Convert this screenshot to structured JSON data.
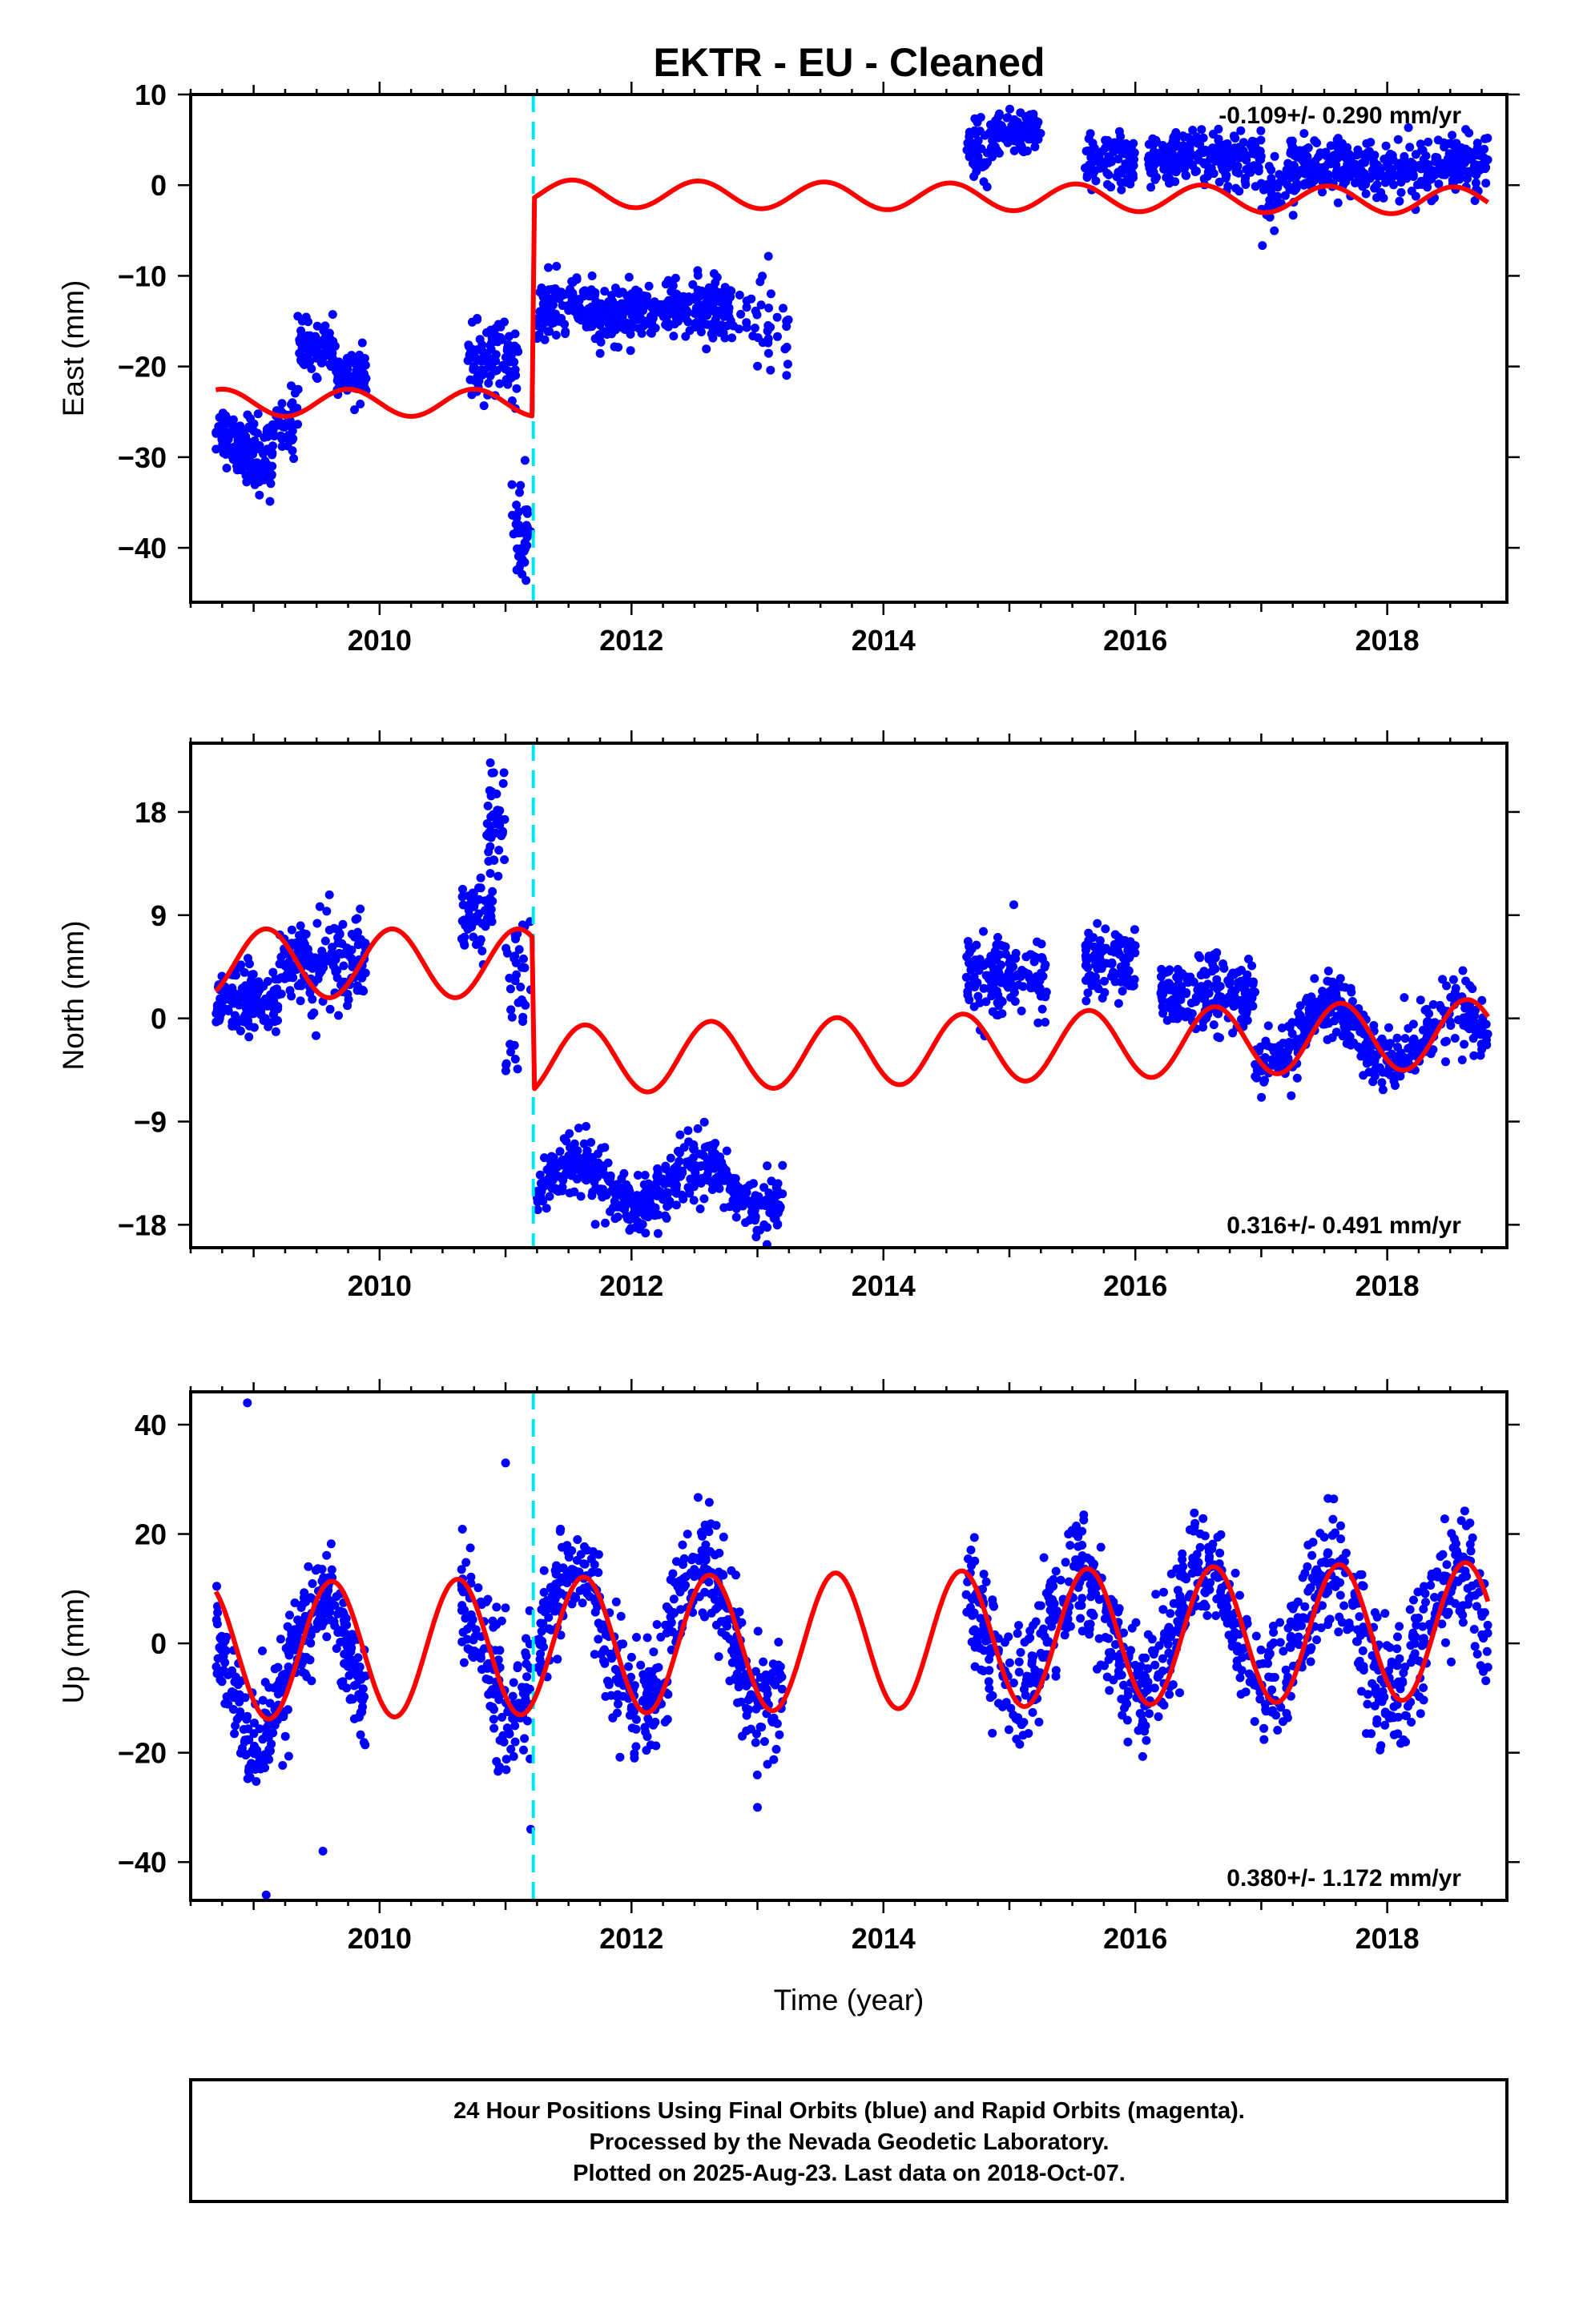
{
  "title": "EKTR  - EU - Cleaned",
  "footer": {
    "lines": [
      "24 Hour Positions Using Final Orbits (blue) and Rapid Orbits (magenta).",
      "Processed by the Nevada Geodetic Laboratory.",
      "Plotted on 2025-Aug-23. Last data on 2018-Oct-07."
    ]
  },
  "colors": {
    "final_orbits": "#0000ff",
    "model": "#ff0000",
    "offset_marker": "#00e5ee",
    "frame": "#000000"
  },
  "chart_data": [
    {
      "type": "scatter",
      "ylabel": "East (mm)",
      "xlabel": "",
      "xlim": [
        2008.5,
        2018.95
      ],
      "ylim": [
        -46,
        10
      ],
      "xticks": [
        2010,
        2012,
        2014,
        2016,
        2018
      ],
      "yticks": [
        -40,
        -30,
        -20,
        -10,
        0,
        10
      ],
      "rate_label": "-0.109+/- 0.290 mm/yr",
      "rate_position": "top-right",
      "offset_epoch": 2011.22,
      "observation_segments": [
        {
          "t0": 2008.7,
          "t1": 2008.95,
          "mean": -28,
          "amp": 2.0,
          "noise": 1.4,
          "n": 90
        },
        {
          "t0": 2008.95,
          "t1": 2009.15,
          "mean": -30,
          "amp": 0,
          "noise": 2.2,
          "n": 60
        },
        {
          "t0": 2009.15,
          "t1": 2009.35,
          "mean": -26,
          "amp": 0,
          "noise": 1.8,
          "n": 45
        },
        {
          "t0": 2009.35,
          "t1": 2009.65,
          "mean": -18,
          "amp": 0,
          "noise": 1.3,
          "n": 90
        },
        {
          "t0": 2009.65,
          "t1": 2009.9,
          "mean": -21,
          "amp": 0,
          "noise": 1.3,
          "n": 70
        },
        {
          "t0": 2010.7,
          "t1": 2011.1,
          "mean": -19.5,
          "amp": 0,
          "noise": 2.0,
          "n": 100
        },
        {
          "t0": 2011.05,
          "t1": 2011.2,
          "mean": -38,
          "amp": 0,
          "noise": 4.0,
          "n": 40
        },
        {
          "t0": 2011.25,
          "t1": 2012.1,
          "mean": -14,
          "amp": 0,
          "noise": 1.6,
          "n": 230
        },
        {
          "t0": 2012.1,
          "t1": 2012.8,
          "mean": -13.5,
          "amp": 0,
          "noise": 1.6,
          "n": 180
        },
        {
          "t0": 2012.8,
          "t1": 2013.25,
          "mean": -15,
          "amp": 0,
          "noise": 3.0,
          "n": 40
        },
        {
          "t0": 2014.65,
          "t1": 2014.85,
          "mean": 4,
          "amp": 0,
          "noise": 1.6,
          "n": 40
        },
        {
          "t0": 2014.85,
          "t1": 2015.25,
          "mean": 5.5,
          "amp": 0,
          "noise": 1.3,
          "n": 100
        },
        {
          "t0": 2015.6,
          "t1": 2016.0,
          "mean": 2.5,
          "amp": 0,
          "noise": 1.5,
          "n": 100
        },
        {
          "t0": 2016.1,
          "t1": 2017.0,
          "mean": 3,
          "amp": 0,
          "noise": 1.4,
          "n": 230
        },
        {
          "t0": 2017.0,
          "t1": 2017.2,
          "mean": -1,
          "amp": 0,
          "noise": 2.0,
          "n": 30
        },
        {
          "t0": 2017.2,
          "t1": 2018.8,
          "mean": 2,
          "amp": 0,
          "noise": 1.6,
          "n": 380
        }
      ],
      "model_segments": [
        {
          "t0": 2008.7,
          "t1": 2011.21,
          "mean": -24,
          "amp": 1.5,
          "phase": 0.2
        },
        {
          "t0": 2011.23,
          "t1": 2018.8,
          "mean": -0.9,
          "amp": 1.5,
          "phase": 0.95,
          "trend": -0.109
        }
      ]
    },
    {
      "type": "scatter",
      "ylabel": "North (mm)",
      "xlabel": "",
      "xlim": [
        2008.5,
        2018.95
      ],
      "ylim": [
        -20,
        24
      ],
      "xticks": [
        2010,
        2012,
        2014,
        2016,
        2018
      ],
      "yticks": [
        -18,
        -9,
        0,
        9,
        18
      ],
      "rate_label": "0.316+/- 0.491 mm/yr",
      "rate_position": "bottom-right",
      "offset_epoch": 2011.22,
      "observation_segments": [
        {
          "t0": 2008.7,
          "t1": 2009.2,
          "mean": 1.5,
          "amp": 0,
          "noise": 1.5,
          "n": 150
        },
        {
          "t0": 2009.2,
          "t1": 2009.9,
          "mean": 4.5,
          "amp": 0,
          "noise": 2.0,
          "n": 180
        },
        {
          "t0": 2010.65,
          "t1": 2010.9,
          "mean": 9,
          "amp": 0,
          "noise": 1.3,
          "n": 60
        },
        {
          "t0": 2010.85,
          "t1": 2011.0,
          "mean": 17,
          "amp": 0,
          "noise": 2.5,
          "n": 45
        },
        {
          "t0": 2011.0,
          "t1": 2011.2,
          "mean": 3,
          "amp": 0,
          "noise": 4.0,
          "n": 40
        },
        {
          "t0": 2011.25,
          "t1": 2013.2,
          "mean": -14.5,
          "amp": 1.8,
          "noise": 1.3,
          "n": 470
        },
        {
          "t0": 2014.65,
          "t1": 2015.3,
          "mean": 3.5,
          "amp": 0,
          "noise": 1.8,
          "n": 140
        },
        {
          "t0": 2015.6,
          "t1": 2016.0,
          "mean": 5,
          "amp": 0,
          "noise": 1.6,
          "n": 100
        },
        {
          "t0": 2016.2,
          "t1": 2016.95,
          "mean": 2,
          "amp": 0,
          "noise": 1.5,
          "n": 190
        },
        {
          "t0": 2016.95,
          "t1": 2018.8,
          "mean": -1.5,
          "amp": 2.3,
          "noise": 1.4,
          "n": 420
        }
      ],
      "model_segments": [
        {
          "t0": 2008.7,
          "t1": 2011.21,
          "mean": 4.8,
          "amp": 3.0,
          "phase": 0.85
        },
        {
          "t0": 2011.23,
          "t1": 2018.8,
          "mean": -3.7,
          "amp": 3.0,
          "phase": 0.85,
          "trend": 0.316
        }
      ]
    },
    {
      "type": "scatter",
      "ylabel": "Up (mm)",
      "xlabel": "Time (year)",
      "xlim": [
        2008.5,
        2018.95
      ],
      "ylim": [
        -47,
        46
      ],
      "xticks": [
        2010,
        2012,
        2014,
        2016,
        2018
      ],
      "yticks": [
        -40,
        -20,
        0,
        20,
        40
      ],
      "rate_label": "0.380+/- 1.172 mm/yr",
      "rate_position": "bottom-right",
      "offset_epoch": 2011.22,
      "observation_segments": [
        {
          "t0": 2008.7,
          "t1": 2009.9,
          "mean": -5,
          "amp": 13,
          "noise": 5.0,
          "n": 340
        },
        {
          "t0": 2010.65,
          "t1": 2011.2,
          "mean": 0,
          "amp": 12,
          "noise": 6.0,
          "n": 150
        },
        {
          "t0": 2011.25,
          "t1": 2013.2,
          "mean": 1,
          "amp": 13,
          "noise": 5.0,
          "n": 470
        },
        {
          "t0": 2014.65,
          "t1": 2018.8,
          "mean": 2,
          "amp": 11,
          "noise": 5.5,
          "n": 950
        }
      ],
      "model_segments": [
        {
          "t0": 2008.7,
          "t1": 2018.8,
          "mean": -1.5,
          "amp": 12.5,
          "phase": 0.33,
          "trend": 0.38
        }
      ],
      "outliers": [
        [
          2008.95,
          44
        ],
        [
          2009.1,
          -46
        ],
        [
          2009.55,
          -38
        ],
        [
          2011.0,
          33
        ],
        [
          2011.2,
          -34
        ],
        [
          2013.0,
          -30
        ]
      ]
    }
  ]
}
